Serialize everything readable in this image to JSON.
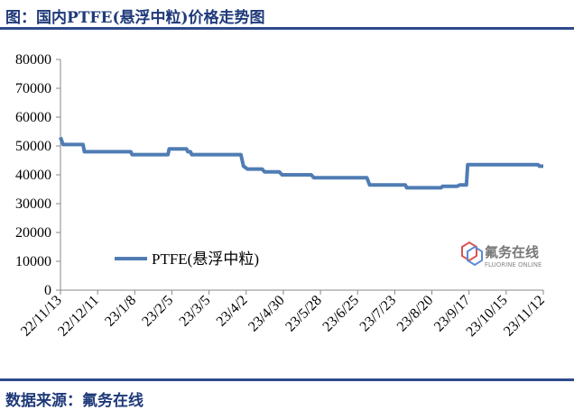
{
  "title": "图：国内PTFE(悬浮中粒)价格走势图",
  "source": "数据来源：氟务在线",
  "watermark": {
    "name_cn": "氟务在线",
    "name_en": "FLUORINE ONLINE",
    "logo_icon": "fluorine-online-logo-icon"
  },
  "colors": {
    "series": "#4f7cb4",
    "title": "#1f3a7a",
    "rule": "#2e4a8c"
  },
  "chart_data": {
    "type": "line",
    "title": "",
    "xlabel": "",
    "ylabel": "",
    "ylim": [
      0,
      80000
    ],
    "yticks": [
      0,
      10000,
      20000,
      30000,
      40000,
      50000,
      60000,
      70000,
      80000
    ],
    "xticks": [
      "22/11/13",
      "22/12/11",
      "23/1/8",
      "23/2/5",
      "23/3/5",
      "23/4/2",
      "23/4/30",
      "23/5/28",
      "23/6/25",
      "23/7/23",
      "23/8/20",
      "23/9/17",
      "23/10/15",
      "23/11/12"
    ],
    "grid": false,
    "legend": "lower-left",
    "series": [
      {
        "name": "PTFE(悬浮中粒)",
        "x": [
          "2022-11-13",
          "2022-11-15",
          "2022-11-30",
          "2022-12-01",
          "2023-01-05",
          "2023-01-06",
          "2023-02-02",
          "2023-02-03",
          "2023-02-16",
          "2023-02-17",
          "2023-02-19",
          "2023-02-20",
          "2023-03-29",
          "2023-03-31",
          "2023-04-03",
          "2023-04-14",
          "2023-04-16",
          "2023-04-27",
          "2023-04-29",
          "2023-05-21",
          "2023-05-23",
          "2023-07-02",
          "2023-07-04",
          "2023-07-31",
          "2023-08-01",
          "2023-08-27",
          "2023-08-28",
          "2023-09-08",
          "2023-09-10",
          "2023-09-15",
          "2023-09-16",
          "2023-11-08",
          "2023-11-09",
          "2023-11-12"
        ],
        "values": [
          53000,
          50500,
          50500,
          48000,
          48000,
          47000,
          47000,
          49000,
          49000,
          48000,
          48000,
          47000,
          47000,
          43000,
          42000,
          42000,
          41000,
          41000,
          40000,
          40000,
          39000,
          39000,
          36500,
          36500,
          35500,
          35500,
          36000,
          36000,
          36500,
          36500,
          43500,
          43500,
          43000,
          43000
        ]
      }
    ]
  }
}
